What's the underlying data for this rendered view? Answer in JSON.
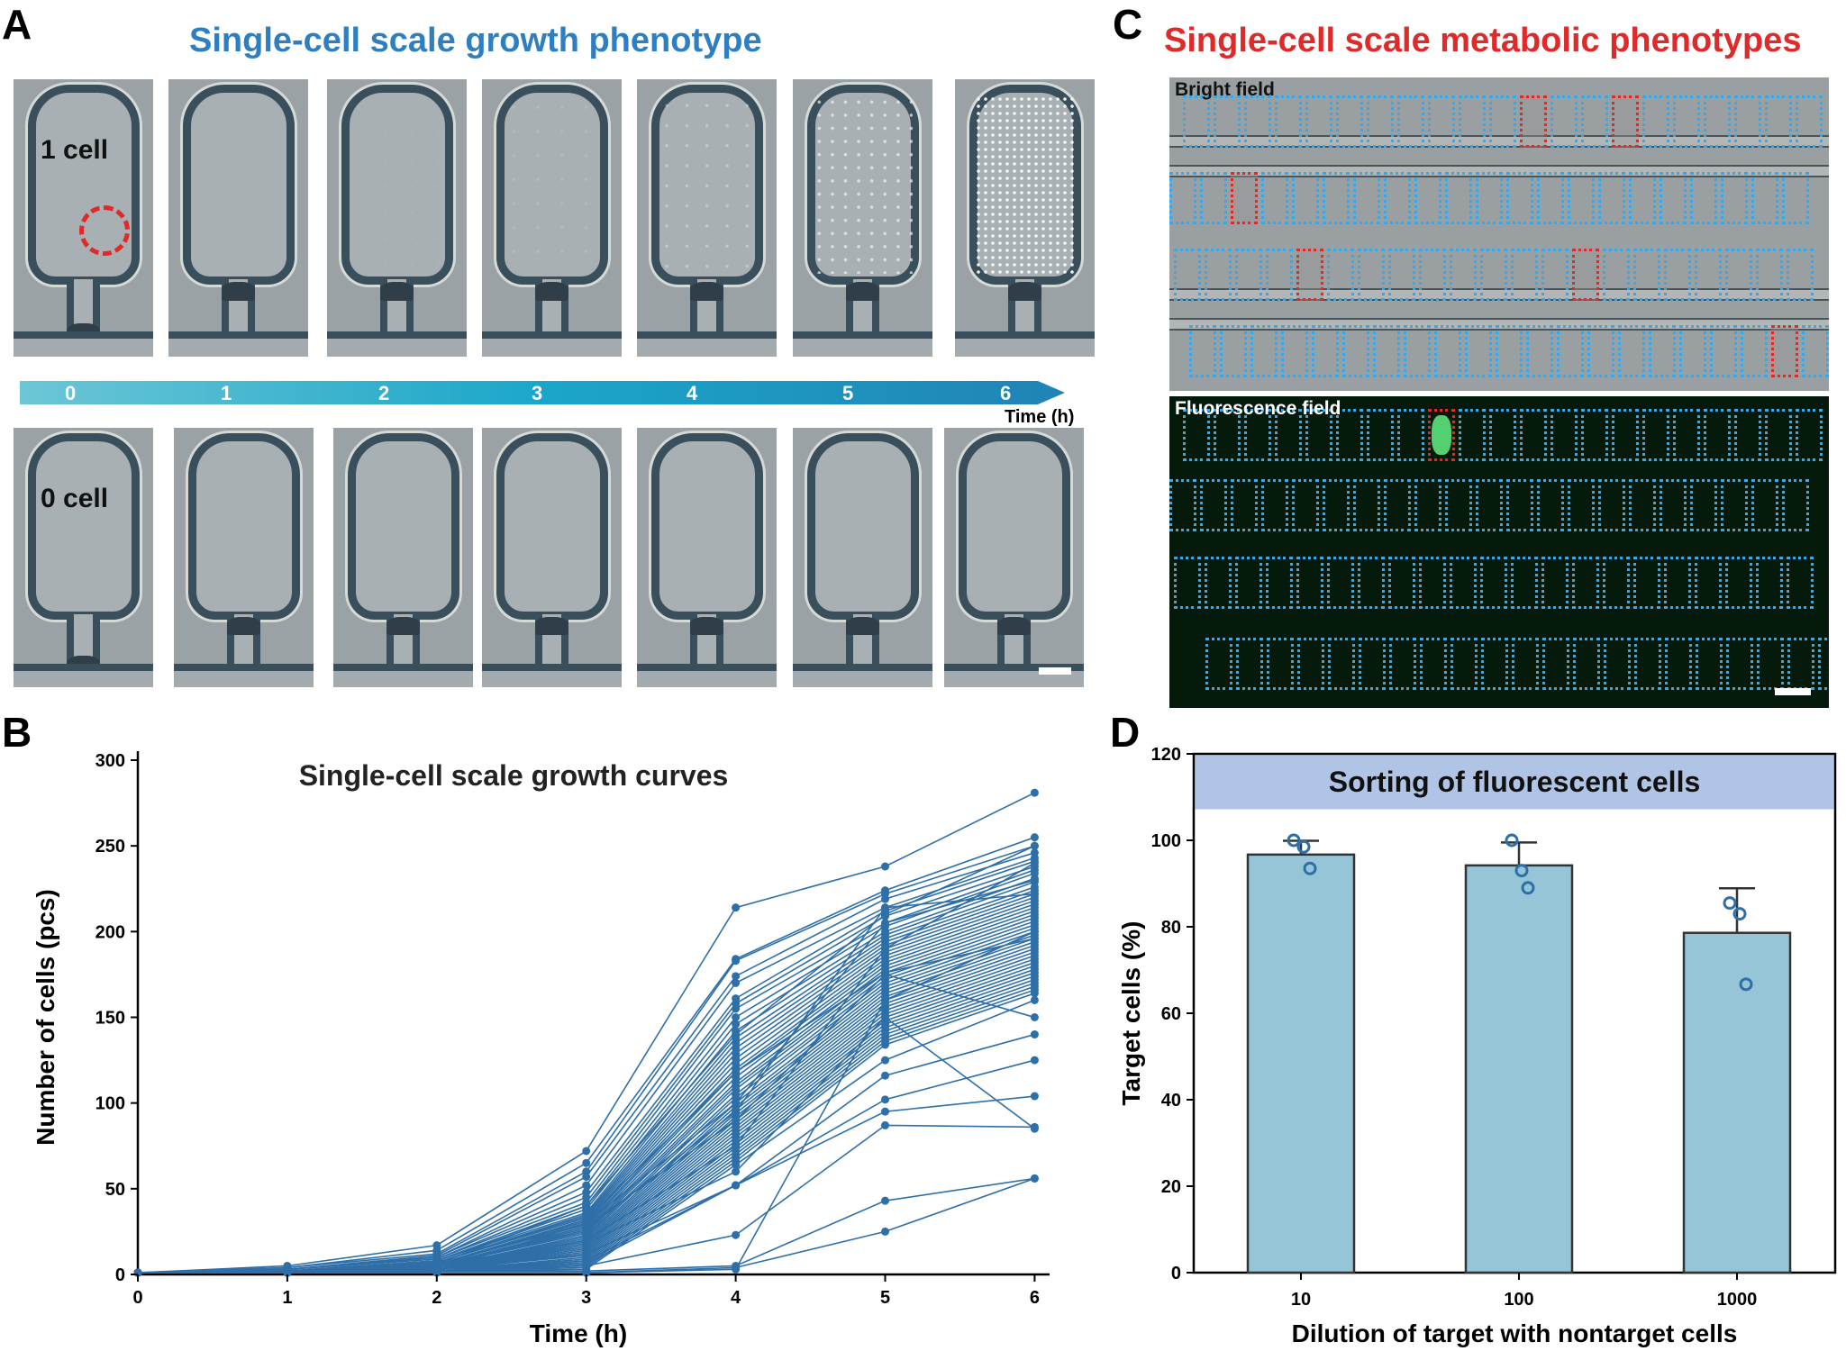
{
  "panels": {
    "a": {
      "letter": "A",
      "title": "Single-cell scale growth phenotype",
      "top_row_label": "1 cell",
      "bottom_row_label": "0 cell",
      "timeline_ticks": [
        "0",
        "1",
        "2",
        "3",
        "4",
        "5",
        "6"
      ],
      "timeline_unit": "Time (h)",
      "top_row_growth_levels": [
        0,
        0.02,
        0.05,
        0.15,
        0.35,
        0.7,
        1.0
      ]
    },
    "b": {
      "letter": "B",
      "title": "Single-cell scale growth curves"
    },
    "c": {
      "letter": "C",
      "title": "Single-cell scale metabolic phenotypes",
      "bright_field_label": "Bright field",
      "fluorescence_field_label": "Fluorescence field"
    },
    "d": {
      "letter": "D",
      "title": "Sorting of fluorescent cells"
    }
  },
  "colors": {
    "blue_title": "#2e7fc1",
    "red_title": "#e02a2a",
    "line_blue": "#2f6fa8",
    "bar_fill": "#96c5d8",
    "header_band": "#b0c4e6",
    "box_blue": "#3aa8e6",
    "box_red": "#e02a2a",
    "fluor_green": "#55d070"
  },
  "chart_data": [
    {
      "type": "line",
      "panel": "B",
      "title": "Single-cell scale growth curves",
      "xlabel": "Time (h)",
      "ylabel": "Number of cells (pcs)",
      "x": [
        0,
        1,
        2,
        3,
        4,
        5,
        6
      ],
      "xticks": [
        "0",
        "1",
        "2",
        "3",
        "4",
        "5",
        "6"
      ],
      "yticks": [
        "0",
        "50",
        "100",
        "150",
        "200",
        "250",
        "300"
      ],
      "ylim": [
        0,
        300
      ],
      "xlim": [
        0,
        6.1
      ],
      "series": [
        {
          "values": [
            1,
            5,
            17,
            72,
            214,
            238,
            281
          ]
        },
        {
          "values": [
            1,
            4,
            14,
            65,
            184,
            224,
            255
          ]
        },
        {
          "values": [
            1,
            4,
            12,
            60,
            183,
            222,
            250
          ]
        },
        {
          "values": [
            1,
            3,
            11,
            57,
            174,
            219,
            246
          ]
        },
        {
          "values": [
            1,
            3,
            10,
            52,
            170,
            214,
            243
          ]
        },
        {
          "values": [
            1,
            3,
            10,
            48,
            161,
            212,
            241
          ]
        },
        {
          "values": [
            1,
            3,
            9,
            45,
            158,
            209,
            238
          ]
        },
        {
          "values": [
            1,
            3,
            9,
            42,
            155,
            205,
            236
          ]
        },
        {
          "values": [
            1,
            2,
            8,
            40,
            150,
            203,
            234
          ]
        },
        {
          "values": [
            1,
            2,
            8,
            38,
            146,
            200,
            231
          ]
        },
        {
          "values": [
            1,
            2,
            8,
            36,
            142,
            198,
            229
          ]
        },
        {
          "values": [
            1,
            2,
            7,
            35,
            138,
            196,
            226
          ]
        },
        {
          "values": [
            1,
            2,
            7,
            34,
            135,
            194,
            224
          ]
        },
        {
          "values": [
            1,
            2,
            7,
            33,
            132,
            192,
            222
          ]
        },
        {
          "values": [
            1,
            2,
            6,
            32,
            129,
            190,
            220
          ]
        },
        {
          "values": [
            1,
            2,
            6,
            31,
            126,
            188,
            218
          ]
        },
        {
          "values": [
            1,
            2,
            6,
            30,
            123,
            186,
            216
          ]
        },
        {
          "values": [
            1,
            2,
            6,
            29,
            120,
            184,
            214
          ]
        },
        {
          "values": [
            1,
            2,
            5,
            28,
            118,
            182,
            212
          ]
        },
        {
          "values": [
            1,
            2,
            5,
            27,
            115,
            180,
            210
          ]
        },
        {
          "values": [
            1,
            2,
            5,
            26,
            112,
            178,
            208
          ]
        },
        {
          "values": [
            1,
            2,
            5,
            25,
            110,
            176,
            206
          ]
        },
        {
          "values": [
            1,
            2,
            5,
            24,
            108,
            174,
            204
          ]
        },
        {
          "values": [
            1,
            2,
            4,
            23,
            105,
            172,
            202
          ]
        },
        {
          "values": [
            1,
            2,
            4,
            22,
            103,
            170,
            200
          ]
        },
        {
          "values": [
            1,
            2,
            4,
            21,
            100,
            168,
            198
          ]
        },
        {
          "values": [
            1,
            2,
            4,
            20,
            98,
            166,
            196
          ]
        },
        {
          "values": [
            1,
            2,
            4,
            19,
            96,
            164,
            194
          ]
        },
        {
          "values": [
            1,
            1,
            4,
            18,
            94,
            162,
            192
          ]
        },
        {
          "values": [
            1,
            1,
            3,
            17,
            92,
            160,
            190
          ]
        },
        {
          "values": [
            1,
            1,
            3,
            16,
            90,
            158,
            188
          ]
        },
        {
          "values": [
            1,
            1,
            3,
            15,
            88,
            156,
            186
          ]
        },
        {
          "values": [
            1,
            1,
            3,
            14,
            86,
            154,
            184
          ]
        },
        {
          "values": [
            1,
            1,
            3,
            13,
            84,
            152,
            182
          ]
        },
        {
          "values": [
            1,
            1,
            3,
            12,
            82,
            150,
            180
          ]
        },
        {
          "values": [
            1,
            1,
            3,
            11,
            80,
            148,
            178
          ]
        },
        {
          "values": [
            1,
            1,
            2,
            10,
            78,
            146,
            176
          ]
        },
        {
          "values": [
            1,
            1,
            2,
            9,
            76,
            144,
            174
          ]
        },
        {
          "values": [
            1,
            1,
            2,
            8,
            74,
            142,
            172
          ]
        },
        {
          "values": [
            1,
            1,
            2,
            7,
            72,
            140,
            170
          ]
        },
        {
          "values": [
            1,
            1,
            2,
            6,
            70,
            138,
            168
          ]
        },
        {
          "values": [
            1,
            1,
            2,
            5,
            68,
            136,
            166
          ]
        },
        {
          "values": [
            1,
            1,
            2,
            4,
            66,
            134,
            164
          ]
        },
        {
          "values": [
            1,
            1,
            2,
            3,
            64,
            125,
            160
          ]
        },
        {
          "values": [
            1,
            1,
            2,
            30,
            100,
            205,
            230
          ]
        },
        {
          "values": [
            1,
            2,
            6,
            40,
            140,
            210,
            250
          ]
        },
        {
          "values": [
            1,
            2,
            5,
            32,
            118,
            176,
            196
          ]
        },
        {
          "values": [
            1,
            2,
            4,
            26,
            95,
            214,
            222
          ]
        },
        {
          "values": [
            1,
            1,
            3,
            20,
            75,
            190,
            240
          ]
        },
        {
          "values": [
            1,
            2,
            5,
            28,
            90,
            175,
            150
          ]
        },
        {
          "values": [
            1,
            1,
            3,
            18,
            60,
            150,
            85
          ]
        },
        {
          "values": [
            1,
            1,
            2,
            12,
            52,
            116,
            140
          ]
        },
        {
          "values": [
            1,
            1,
            2,
            8,
            52,
            102,
            125
          ]
        },
        {
          "values": [
            1,
            1,
            2,
            6,
            52,
            95,
            104
          ]
        },
        {
          "values": [
            1,
            1,
            2,
            5,
            23,
            87,
            86
          ]
        },
        {
          "values": [
            1,
            1,
            2,
            2,
            5,
            43,
            56
          ]
        },
        {
          "values": [
            1,
            1,
            1,
            1,
            4,
            25,
            56
          ]
        },
        {
          "values": [
            1,
            1,
            1,
            1,
            3,
            160,
            200
          ]
        }
      ]
    },
    {
      "type": "bar",
      "panel": "D",
      "title": "Sorting of fluorescent cells",
      "xlabel": "Dilution of target with nontarget cells",
      "ylabel": "Target cells (%)",
      "categories": [
        "10",
        "100",
        "1000"
      ],
      "values": [
        96.7,
        94.2,
        78.6
      ],
      "error": [
        3.2,
        5.3,
        10.3
      ],
      "points": [
        [
          100,
          98.5,
          93.5
        ],
        [
          100,
          93,
          89
        ],
        [
          85.5,
          83,
          66.7
        ]
      ],
      "yticks": [
        "0",
        "20",
        "40",
        "60",
        "80",
        "100",
        "120"
      ],
      "ylim": [
        0,
        120
      ]
    }
  ]
}
